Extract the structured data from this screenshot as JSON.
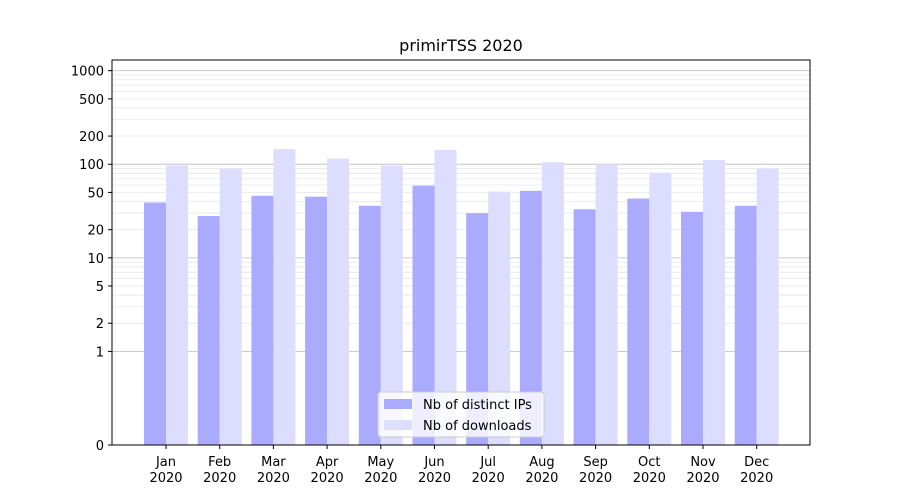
{
  "chart_data": {
    "type": "bar",
    "title": "primirTSS 2020",
    "xlabel": "",
    "ylabel": "",
    "scale": "symlog",
    "ylim": [
      0,
      1300
    ],
    "yticks": [
      0,
      1,
      2,
      5,
      10,
      20,
      50,
      100,
      200,
      500,
      1000
    ],
    "grid": "y",
    "legend_position": "bottom-center",
    "categories": [
      [
        "Jan",
        "2020"
      ],
      [
        "Feb",
        "2020"
      ],
      [
        "Mar",
        "2020"
      ],
      [
        "Apr",
        "2020"
      ],
      [
        "May",
        "2020"
      ],
      [
        "Jun",
        "2020"
      ],
      [
        "Jul",
        "2020"
      ],
      [
        "Aug",
        "2020"
      ],
      [
        "Sep",
        "2020"
      ],
      [
        "Oct",
        "2020"
      ],
      [
        "Nov",
        "2020"
      ],
      [
        "Dec",
        "2020"
      ]
    ],
    "series": [
      {
        "name": "Nb of distinct IPs",
        "color": "#aaaaff",
        "values": [
          39,
          28,
          46,
          45,
          36,
          59,
          30,
          52,
          33,
          43,
          31,
          36
        ]
      },
      {
        "name": "Nb of downloads",
        "color": "#ddddff",
        "values": [
          97,
          90,
          145,
          115,
          97,
          142,
          51,
          105,
          100,
          81,
          111,
          90
        ]
      }
    ]
  }
}
